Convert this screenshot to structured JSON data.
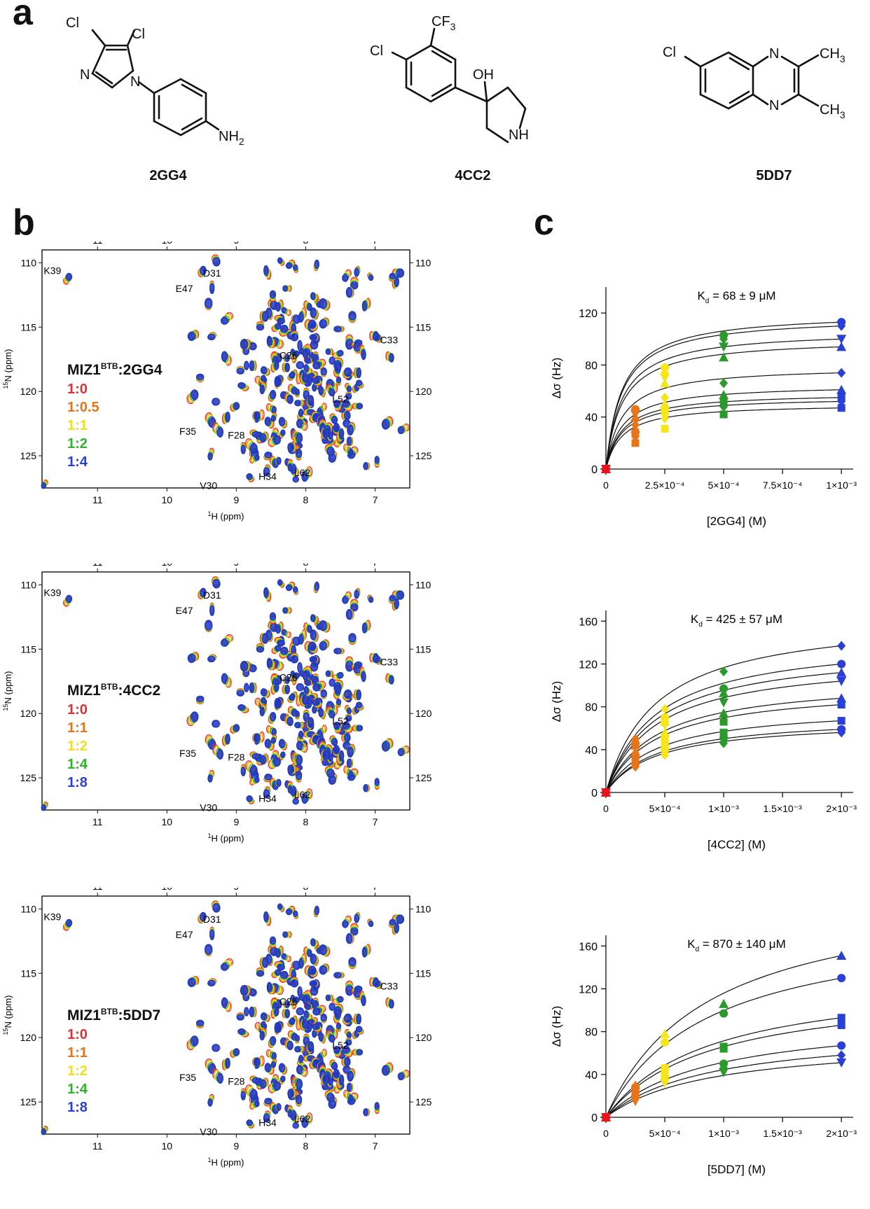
{
  "panel_letters": [
    "a",
    "b",
    "c"
  ],
  "molecules": [
    {
      "name": "2GG4",
      "atoms": {
        "cl1": "Cl",
        "cl2": "Cl",
        "n1": "N",
        "n2": "N",
        "nh2": "NH",
        "nh2_sub": "2"
      }
    },
    {
      "name": "4CC2",
      "atoms": {
        "cf3": "CF",
        "cf3_sub": "3",
        "cl": "Cl",
        "oh": "OH",
        "nh": "NH"
      }
    },
    {
      "name": "5DD7",
      "atoms": {
        "cl": "Cl",
        "n1": "N",
        "n2": "N",
        "ch3a": "CH",
        "ch3a_sub": "3",
        "ch3b": "CH",
        "ch3b_sub": "3"
      }
    }
  ],
  "spectra": [
    {
      "ligand": "2GG4",
      "legend_prefix": "MIZ1",
      "legend_sup": "BTB",
      "legend_suffix": ":2GG4",
      "ratios": [
        {
          "label": "1:0",
          "color": "#e23030"
        },
        {
          "label": "1:0.5",
          "color": "#e8741a"
        },
        {
          "label": "1:1",
          "color": "#f4e21a"
        },
        {
          "label": "1:2",
          "color": "#2ab52a"
        },
        {
          "label": "1:4",
          "color": "#2a3fd6"
        }
      ]
    },
    {
      "ligand": "4CC2",
      "legend_prefix": "MIZ1",
      "legend_sup": "BTB",
      "legend_suffix": ":4CC2",
      "ratios": [
        {
          "label": "1:0",
          "color": "#e23030"
        },
        {
          "label": "1:1",
          "color": "#e8741a"
        },
        {
          "label": "1:2",
          "color": "#f4e21a"
        },
        {
          "label": "1:4",
          "color": "#2ab52a"
        },
        {
          "label": "1:8",
          "color": "#2a3fd6"
        }
      ]
    },
    {
      "ligand": "5DD7",
      "legend_prefix": "MIZ1",
      "legend_sup": "BTB",
      "legend_suffix": ":5DD7",
      "ratios": [
        {
          "label": "1:0",
          "color": "#e23030"
        },
        {
          "label": "1:1",
          "color": "#e8741a"
        },
        {
          "label": "1:2",
          "color": "#f4e21a"
        },
        {
          "label": "1:4",
          "color": "#2ab52a"
        },
        {
          "label": "1:8",
          "color": "#2a3fd6"
        }
      ]
    }
  ],
  "spectrum_axes": {
    "x_ticks": [
      "11",
      "10",
      "9",
      "8",
      "7"
    ],
    "y_ticks": [
      "110",
      "115",
      "120",
      "125"
    ],
    "xlabel_main": "H (ppm)",
    "xlabel_sup": "1",
    "ylabel_main": "N (ppm)",
    "ylabel_sup": "15",
    "xlim": [
      11.8,
      6.5
    ],
    "ylim": [
      109,
      127.5
    ]
  },
  "residues": [
    {
      "label": "K39",
      "h": 11.45,
      "n": 111.4,
      "lx": 11.65,
      "ly": 110.6
    },
    {
      "label": "D31",
      "h": 9.3,
      "n": 109.7,
      "lx": 9.35,
      "ly": 110.8
    },
    {
      "label": "E47",
      "h": 9.35,
      "n": 111.8,
      "lx": 9.75,
      "ly": 112.0
    },
    {
      "label": "C26",
      "h": 7.95,
      "n": 117.6,
      "lx": 8.25,
      "ly": 117.2
    },
    {
      "label": "C33",
      "h": 6.95,
      "n": 115.9,
      "lx": 6.8,
      "ly": 116.0
    },
    {
      "label": "L52",
      "h": 7.75,
      "n": 120.1,
      "lx": 7.5,
      "ly": 120.6
    },
    {
      "label": "F35",
      "h": 9.3,
      "n": 122.8,
      "lx": 9.7,
      "ly": 123.1
    },
    {
      "label": "F28",
      "h": 8.75,
      "n": 123.2,
      "lx": 9.0,
      "ly": 123.4
    },
    {
      "label": "H34",
      "h": 8.4,
      "n": 125.4,
      "lx": 8.55,
      "ly": 126.6
    },
    {
      "label": "L62",
      "h": 8.1,
      "n": 125.0,
      "lx": 8.05,
      "ly": 126.3
    },
    {
      "label": "V30",
      "h": 9.05,
      "n": 127.3,
      "lx": 9.4,
      "ly": 127.3
    }
  ],
  "chart_data": [
    {
      "type": "scatter",
      "title_main": "K",
      "title_sub": "d",
      "title_rest": " = 68 ± 9 μM",
      "xlabel": "[2GG4] (M)",
      "ylabel": "Δσ (Hz)",
      "xlim": [
        0,
        0.00105
      ],
      "ylim": [
        0,
        140
      ],
      "x_ticks": [
        0,
        0.00025,
        0.0005,
        0.00075,
        0.001
      ],
      "x_tick_labels": [
        "0",
        "2.5×10⁻⁴",
        "5×10⁻⁴",
        "7.5×10⁻⁴",
        "1×10⁻³"
      ],
      "y_ticks": [
        0,
        40,
        80,
        120
      ],
      "y_tick_labels": [
        "0",
        "40",
        "80",
        "120"
      ],
      "x": [
        0,
        0.000125,
        0.00025,
        0.0005,
        0.001
      ],
      "point_colors": [
        "#e8141a",
        "#e8741a",
        "#f4e61a",
        "#2a9b2a",
        "#2a3fd6"
      ],
      "kd": 6.8e-05,
      "series": [
        {
          "marker": "circle",
          "values": [
            0,
            46,
            78,
            103,
            113
          ]
        },
        {
          "marker": "diamond",
          "values": [
            0,
            44,
            74,
            100,
            110
          ]
        },
        {
          "marker": "triangle-down",
          "values": [
            0,
            42,
            70,
            94,
            100
          ]
        },
        {
          "marker": "triangle-up",
          "values": [
            0,
            40,
            66,
            86,
            94
          ]
        },
        {
          "marker": "diamond",
          "values": [
            0,
            34,
            55,
            66,
            74
          ]
        },
        {
          "marker": "triangle-up",
          "values": [
            0,
            31,
            50,
            57,
            61
          ]
        },
        {
          "marker": "square",
          "values": [
            0,
            28,
            44,
            52,
            55
          ]
        },
        {
          "marker": "diamond",
          "values": [
            0,
            25,
            39,
            48,
            52
          ]
        },
        {
          "marker": "square",
          "values": [
            0,
            20,
            31,
            42,
            47
          ]
        }
      ]
    },
    {
      "type": "scatter",
      "title_main": "K",
      "title_sub": "d",
      "title_rest": " = 425 ± 57 μM",
      "xlabel": "[4CC2] (M)",
      "ylabel": "Δσ (Hz)",
      "xlim": [
        0,
        0.0021
      ],
      "ylim": [
        0,
        170
      ],
      "x_ticks": [
        0,
        0.0005,
        0.001,
        0.0015,
        0.002
      ],
      "x_tick_labels": [
        "0",
        "5×10⁻⁴",
        "1×10⁻³",
        "1.5×10⁻³",
        "2×10⁻³"
      ],
      "y_ticks": [
        0,
        40,
        80,
        120,
        160
      ],
      "y_tick_labels": [
        "0",
        "40",
        "80",
        "120",
        "160"
      ],
      "x": [
        0,
        0.00025,
        0.0005,
        0.001,
        0.002
      ],
      "point_colors": [
        "#e8141a",
        "#e8741a",
        "#f4e61a",
        "#2a9b2a",
        "#2a3fd6"
      ],
      "kd": 0.000425,
      "series": [
        {
          "marker": "diamond",
          "values": [
            0,
            50,
            78,
            113,
            137
          ]
        },
        {
          "marker": "circle",
          "values": [
            0,
            46,
            70,
            97,
            120
          ]
        },
        {
          "marker": "triangle-up",
          "values": [
            0,
            44,
            66,
            93,
            112
          ]
        },
        {
          "marker": "triangle-down",
          "values": [
            0,
            42,
            63,
            84,
            104
          ]
        },
        {
          "marker": "triangle-up",
          "values": [
            0,
            38,
            56,
            74,
            88
          ]
        },
        {
          "marker": "square",
          "values": [
            0,
            34,
            50,
            66,
            82
          ]
        },
        {
          "marker": "square",
          "values": [
            0,
            30,
            44,
            56,
            67
          ]
        },
        {
          "marker": "circle",
          "values": [
            0,
            27,
            40,
            51,
            59
          ]
        },
        {
          "marker": "diamond",
          "values": [
            0,
            24,
            35,
            46,
            56
          ]
        }
      ]
    },
    {
      "type": "scatter",
      "title_main": "K",
      "title_sub": "d",
      "title_rest": " = 870 ± 140 μM",
      "xlabel": "[5DD7] (M)",
      "ylabel": "Δσ (Hz)",
      "xlim": [
        0,
        0.0021
      ],
      "ylim": [
        0,
        170
      ],
      "x_ticks": [
        0,
        0.0005,
        0.001,
        0.0015,
        0.002
      ],
      "x_tick_labels": [
        "0",
        "5×10⁻⁴",
        "1×10⁻³",
        "1.5×10⁻³",
        "2×10⁻³"
      ],
      "y_ticks": [
        0,
        40,
        80,
        120,
        160
      ],
      "y_tick_labels": [
        "0",
        "40",
        "80",
        "120",
        "160"
      ],
      "x": [
        0,
        0.00025,
        0.0005,
        0.001,
        0.002
      ],
      "point_colors": [
        "#e8141a",
        "#e8741a",
        "#f4e61a",
        "#2a9b2a",
        "#2a3fd6"
      ],
      "kd": 0.00087,
      "series": [
        {
          "marker": "triangle-up",
          "values": [
            0,
            30,
            78,
            106,
            151
          ]
        },
        {
          "marker": "circle",
          "values": [
            0,
            28,
            70,
            97,
            130
          ]
        },
        {
          "marker": "square",
          "values": [
            0,
            24,
            46,
            66,
            93
          ]
        },
        {
          "marker": "square",
          "values": [
            0,
            22,
            42,
            64,
            86
          ]
        },
        {
          "marker": "circle",
          "values": [
            0,
            20,
            38,
            50,
            67
          ]
        },
        {
          "marker": "diamond",
          "values": [
            0,
            18,
            35,
            46,
            58
          ]
        },
        {
          "marker": "triangle-down",
          "values": [
            0,
            15,
            32,
            42,
            51
          ]
        }
      ]
    }
  ]
}
